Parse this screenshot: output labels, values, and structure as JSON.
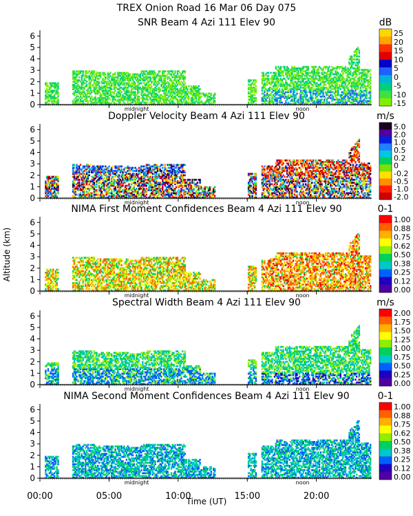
{
  "figure": {
    "title": "TREX Onion Road  16 Mar 06 Day 075",
    "ylabel": "Altitude (km)",
    "xlabel": "Time (UT)",
    "x_ticks": [
      "00:00",
      "05:00",
      "10:00",
      "15:00",
      "20:00"
    ],
    "markers": [
      "midnight",
      "noon"
    ]
  },
  "chart_data": [
    {
      "type": "heatmap",
      "title": "SNR Beam 4 Azi 111 Elev 90",
      "unit": "dB",
      "colorbar_ticks": [
        "25",
        "20",
        "15",
        "10",
        "5",
        "0",
        "-5",
        "-10",
        "-15"
      ],
      "colors": [
        "#ffd700",
        "#ffa500",
        "#ff3000",
        "#e00000",
        "#0000c8",
        "#2060ff",
        "#00b4d8",
        "#00d080",
        "#40e040",
        "#80f000"
      ],
      "y_ticks": [
        "6",
        "5",
        "4",
        "3",
        "2",
        "1",
        "0"
      ],
      "ylim": [
        0,
        6.5
      ],
      "xlim_hours": [
        0,
        24
      ]
    },
    {
      "type": "heatmap",
      "title": "Doppler Velocity Beam 4 Azi 111 Elev 90",
      "unit": "m/s",
      "colorbar_ticks": [
        "5.0",
        "2.0",
        "1.0",
        "0.5",
        "0.2",
        "0",
        "-0.2",
        "-0.5",
        "-1.0",
        "-2.0"
      ],
      "colors": [
        "#1a0020",
        "#5000a0",
        "#0020e0",
        "#2080ff",
        "#00c8e0",
        "#00d060",
        "#80e000",
        "#ffe000",
        "#ff9000",
        "#ff2000",
        "#d00000"
      ],
      "y_ticks": [
        "6",
        "5",
        "4",
        "3",
        "2",
        "1",
        "0"
      ],
      "ylim": [
        0,
        6.5
      ],
      "xlim_hours": [
        0,
        24
      ]
    },
    {
      "type": "heatmap",
      "title": "NIMA First Moment Confidences Beam 4 Azi 111 Elev 90",
      "unit": "0-1",
      "colorbar_ticks": [
        "1.00",
        "0.88",
        "0.75",
        "0.62",
        "0.50",
        "0.38",
        "0.25",
        "0.12",
        "0.00"
      ],
      "colors": [
        "#ff0000",
        "#ff6000",
        "#ffb000",
        "#ffff00",
        "#90ee00",
        "#00d060",
        "#00c8c8",
        "#0060ff",
        "#2000c0",
        "#5000a0"
      ],
      "y_ticks": [
        "6",
        "5",
        "4",
        "3",
        "2",
        "1",
        "0"
      ],
      "ylim": [
        0,
        6.5
      ],
      "xlim_hours": [
        0,
        24
      ]
    },
    {
      "type": "heatmap",
      "title": "Spectral Width Beam 4 Azi 111 Elev 90",
      "unit": "m/s",
      "colorbar_ticks": [
        "2.00",
        "1.75",
        "1.50",
        "1.25",
        "1.00",
        "0.75",
        "0.50",
        "0.25",
        "0.00"
      ],
      "colors": [
        "#ff0000",
        "#ff6000",
        "#ffb000",
        "#ffff00",
        "#90ee00",
        "#00d060",
        "#00c8c8",
        "#0060ff",
        "#2000c0",
        "#5000a0"
      ],
      "y_ticks": [
        "6",
        "5",
        "4",
        "3",
        "2",
        "1",
        "0"
      ],
      "ylim": [
        0,
        6.5
      ],
      "xlim_hours": [
        0,
        24
      ]
    },
    {
      "type": "heatmap",
      "title": "NIMA Second Moment Confidences Beam 4 Azi 111 Elev 90",
      "unit": "0-1",
      "colorbar_ticks": [
        "1.00",
        "0.88",
        "0.75",
        "0.62",
        "0.50",
        "0.38",
        "0.25",
        "0.12",
        "0.00"
      ],
      "colors": [
        "#ff0000",
        "#ff6000",
        "#ffb000",
        "#ffff00",
        "#90ee00",
        "#00d060",
        "#00c8c8",
        "#0060ff",
        "#2000c0",
        "#5000a0"
      ],
      "y_ticks": [
        "6",
        "5",
        "4",
        "3",
        "2",
        "1",
        "0"
      ],
      "ylim": [
        0,
        6.5
      ],
      "xlim_hours": [
        0,
        24
      ]
    }
  ]
}
